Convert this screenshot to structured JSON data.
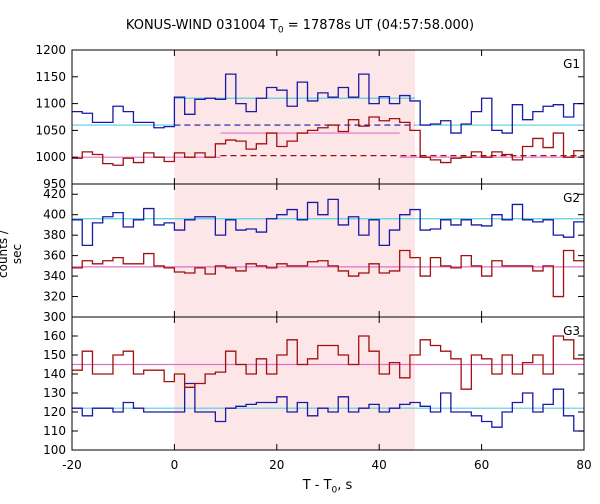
{
  "chart_data": {
    "type": "line",
    "title_parts": [
      "KONUS-WIND 031004 T",
      "0",
      " = 17878s UT (04:57:58.000)"
    ],
    "xlabel_parts": [
      "T - T",
      "0",
      ", s"
    ],
    "ylabel": "counts / sec",
    "xlim": [
      -20,
      80
    ],
    "xticks": [
      -20,
      0,
      20,
      40,
      60,
      80
    ],
    "highlight_interval": [
      0,
      47
    ],
    "colors": {
      "blue": "#1a1aa6",
      "red": "#a01010",
      "cyan": "#52d0e0",
      "pink": "#e070c8",
      "band": "#fde6e8"
    },
    "x_edges": [
      -20,
      -18,
      -16,
      -14,
      -12,
      -10,
      -8,
      -6,
      -4,
      -2,
      0,
      2,
      4,
      6,
      8,
      10,
      12,
      14,
      16,
      18,
      20,
      22,
      24,
      26,
      28,
      30,
      32,
      34,
      36,
      38,
      40,
      42,
      44,
      46,
      48,
      50,
      52,
      54,
      56,
      58,
      60,
      62,
      64,
      66,
      68,
      70,
      72,
      74,
      76,
      78,
      80
    ],
    "panels": [
      {
        "label": "G1",
        "ylim": [
          950,
          1200
        ],
        "yticks": [
          950,
          1000,
          1050,
          1100,
          1150,
          1200
        ],
        "series": [
          {
            "color": "blue",
            "values": [
              1085,
              1082,
              1065,
              1065,
              1095,
              1085,
              1065,
              1065,
              1055,
              1057,
              1112,
              1080,
              1108,
              1110,
              1108,
              1155,
              1100,
              1085,
              1110,
              1130,
              1125,
              1095,
              1140,
              1105,
              1120,
              1112,
              1130,
              1112,
              1155,
              1100,
              1113,
              1100,
              1115,
              1105,
              1060,
              1062,
              1068,
              1045,
              1062,
              1085,
              1110,
              1050,
              1045,
              1098,
              1070,
              1085,
              1095,
              1098,
              1075,
              1100
            ]
          },
          {
            "color": "red",
            "values": [
              998,
              1010,
              1005,
              988,
              985,
              998,
              990,
              1008,
              1000,
              992,
              1008,
              1000,
              1008,
              1000,
              1025,
              1032,
              1030,
              1015,
              1025,
              1045,
              1020,
              1030,
              1045,
              1050,
              1055,
              1060,
              1048,
              1070,
              1058,
              1075,
              1068,
              1072,
              1065,
              1050,
              1000,
              995,
              990,
              998,
              1000,
              1010,
              1000,
              1010,
              1005,
              995,
              1020,
              1035,
              1018,
              1045,
              1000,
              1012
            ]
          }
        ],
        "hlines": [
          {
            "color": "cyan",
            "style": "solid",
            "y": 1060,
            "from": -20,
            "to": 0
          },
          {
            "color": "cyan",
            "style": "solid",
            "y": 1110,
            "from": 0,
            "to": 47
          },
          {
            "color": "cyan",
            "style": "solid",
            "y": 1060,
            "from": 47,
            "to": 80
          },
          {
            "color": "pink",
            "style": "solid",
            "y": 1000,
            "from": -20,
            "to": 9
          },
          {
            "color": "pink",
            "style": "solid",
            "y": 1045,
            "from": 9,
            "to": 44
          },
          {
            "color": "pink",
            "style": "solid",
            "y": 1000,
            "from": 44,
            "to": 80
          },
          {
            "color": "blue",
            "style": "dashed",
            "y": 1060,
            "from": 0,
            "to": 47
          },
          {
            "color": "red",
            "style": "dashed",
            "y": 1003,
            "from": 9,
            "to": 80
          }
        ]
      },
      {
        "label": "G2",
        "ylim": [
          300,
          430
        ],
        "yticks": [
          300,
          320,
          340,
          360,
          380,
          400,
          420
        ],
        "series": [
          {
            "color": "blue",
            "values": [
              395,
              370,
              392,
              398,
              402,
              388,
              395,
              406,
              390,
              392,
              385,
              395,
              398,
              398,
              380,
              395,
              385,
              386,
              383,
              396,
              400,
              405,
              395,
              412,
              400,
              415,
              390,
              398,
              380,
              395,
              370,
              385,
              400,
              405,
              385,
              386,
              395,
              390,
              395,
              390,
              389,
              400,
              395,
              410,
              395,
              393,
              395,
              380,
              378,
              393
            ]
          },
          {
            "color": "red",
            "values": [
              348,
              355,
              352,
              355,
              358,
              352,
              352,
              362,
              350,
              348,
              344,
              343,
              348,
              342,
              350,
              348,
              345,
              352,
              350,
              348,
              352,
              350,
              350,
              354,
              355,
              350,
              345,
              340,
              343,
              352,
              343,
              345,
              365,
              358,
              340,
              358,
              350,
              348,
              360,
              350,
              340,
              355,
              350,
              350,
              350,
              345,
              350,
              320,
              365,
              355
            ]
          }
        ],
        "hlines": [
          {
            "color": "cyan",
            "style": "solid",
            "y": 396,
            "from": -20,
            "to": 80
          },
          {
            "color": "pink",
            "style": "solid",
            "y": 349,
            "from": -20,
            "to": 80
          }
        ]
      },
      {
        "label": "G3",
        "ylim": [
          100,
          170
        ],
        "yticks": [
          100,
          110,
          120,
          130,
          140,
          150,
          160
        ],
        "series": [
          {
            "color": "blue",
            "values": [
              122,
              118,
              122,
              122,
              120,
              125,
              122,
              120,
              120,
              120,
              120,
              135,
              120,
              120,
              115,
              122,
              123,
              124,
              125,
              125,
              128,
              120,
              125,
              118,
              122,
              120,
              128,
              120,
              122,
              124,
              120,
              122,
              124,
              125,
              123,
              120,
              130,
              120,
              120,
              118,
              115,
              112,
              120,
              125,
              130,
              120,
              124,
              132,
              118,
              110
            ]
          },
          {
            "color": "red",
            "values": [
              142,
              152,
              140,
              140,
              150,
              152,
              140,
              142,
              142,
              136,
              140,
              133,
              135,
              140,
              141,
              152,
              145,
              140,
              148,
              140,
              150,
              158,
              145,
              148,
              155,
              155,
              150,
              145,
              160,
              152,
              140,
              146,
              138,
              150,
              158,
              155,
              152,
              148,
              132,
              150,
              148,
              140,
              150,
              140,
              146,
              150,
              140,
              160,
              158,
              148
            ]
          }
        ],
        "hlines": [
          {
            "color": "cyan",
            "style": "solid",
            "y": 122,
            "from": -20,
            "to": 80
          },
          {
            "color": "pink",
            "style": "solid",
            "y": 145,
            "from": -20,
            "to": 80
          }
        ]
      }
    ]
  }
}
